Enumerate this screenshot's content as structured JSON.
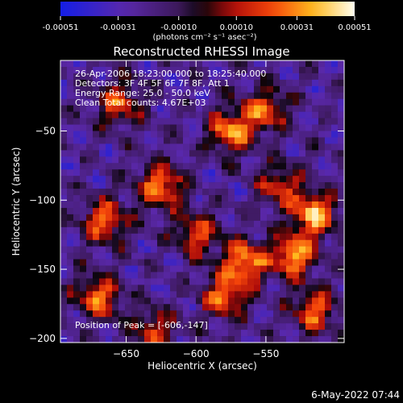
{
  "chart_data": {
    "type": "heatmap",
    "title": "Reconstructed RHESSI Image",
    "xlabel": "Heliocentric X (arcsec)",
    "ylabel": "Heliocentric Y (arcsec)",
    "x_ticks": [
      -650,
      -600,
      -550
    ],
    "y_ticks": [
      -50,
      -100,
      -150,
      -200
    ],
    "xlim": [
      -697,
      -494
    ],
    "ylim": [
      -203,
      1
    ],
    "colorbar": {
      "unit_label": "(photons cm⁻² s⁻¹ asec⁻²)",
      "ticks": [
        "-0.00051",
        "-0.00031",
        "-0.00010",
        "0.00010",
        "0.00031",
        "0.00051"
      ],
      "range": [
        -0.00051,
        0.00051
      ]
    },
    "annotations": {
      "time": "26-Apr-2006 18:23:00.000 to 18:25:40.000",
      "detectors": "Detectors: 3F 4F 5F 6F 7F 8F, Att 1",
      "energy": "Energy Range: 25.0 - 50.0 keV",
      "clean": "Clean    Total counts: 4.67E+03",
      "peak": "Position of Peak = [-606,-147]"
    },
    "sources": [
      {
        "x": -515,
        "y": -110,
        "intensity": 0.95
      },
      {
        "x": -530,
        "y": -140,
        "intensity": 0.9
      },
      {
        "x": -565,
        "y": -145,
        "intensity": 0.9
      },
      {
        "x": -625,
        "y": -90,
        "intensity": 0.85
      },
      {
        "x": -575,
        "y": -50,
        "intensity": 0.85
      },
      {
        "x": -550,
        "y": -35,
        "intensity": 0.7
      },
      {
        "x": -665,
        "y": -115,
        "intensity": 0.75
      },
      {
        "x": -670,
        "y": -170,
        "intensity": 0.75
      },
      {
        "x": -580,
        "y": -170,
        "intensity": 0.75
      },
      {
        "x": -515,
        "y": -180,
        "intensity": 0.7
      },
      {
        "x": -655,
        "y": -30,
        "intensity": 0.65
      },
      {
        "x": -600,
        "y": -125,
        "intensity": 0.65
      },
      {
        "x": -630,
        "y": -195,
        "intensity": 0.6
      },
      {
        "x": -540,
        "y": -90,
        "intensity": 0.6
      }
    ],
    "grid": false,
    "legend": "none"
  },
  "footer": {
    "timestamp": "6-May-2022 07:44"
  },
  "colors": {
    "background": "#000000",
    "text": "#ffffff"
  }
}
